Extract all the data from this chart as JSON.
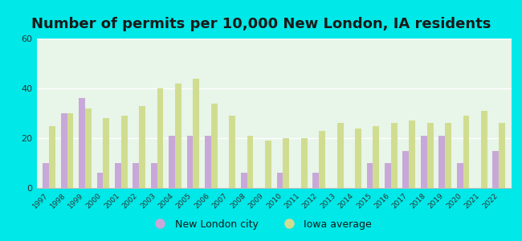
{
  "title": "Number of permits per 10,000 New London, IA residents",
  "years": [
    1997,
    1998,
    1999,
    2000,
    2001,
    2002,
    2003,
    2004,
    2005,
    2006,
    2007,
    2008,
    2009,
    2010,
    2011,
    2012,
    2013,
    2014,
    2015,
    2016,
    2017,
    2018,
    2019,
    2020,
    2021,
    2022
  ],
  "city_values": [
    10,
    30,
    36,
    6,
    10,
    10,
    10,
    21,
    21,
    21,
    0,
    6,
    0,
    6,
    0,
    6,
    0,
    0,
    10,
    10,
    15,
    21,
    21,
    10,
    0,
    15
  ],
  "iowa_values": [
    25,
    30,
    32,
    28,
    29,
    33,
    40,
    42,
    44,
    34,
    29,
    21,
    19,
    20,
    20,
    23,
    26,
    24,
    25,
    26,
    27,
    26,
    26,
    29,
    31,
    26
  ],
  "city_color": "#c8a8d8",
  "iowa_color": "#d0dd90",
  "background_outer": "#00e8e8",
  "background_inner": "#e8f5e9",
  "ylim": [
    0,
    60
  ],
  "yticks": [
    0,
    20,
    40,
    60
  ],
  "title_fontsize": 13,
  "bar_width": 0.35,
  "city_label": "New London city",
  "iowa_label": "Iowa average",
  "legend_fontsize": 9
}
